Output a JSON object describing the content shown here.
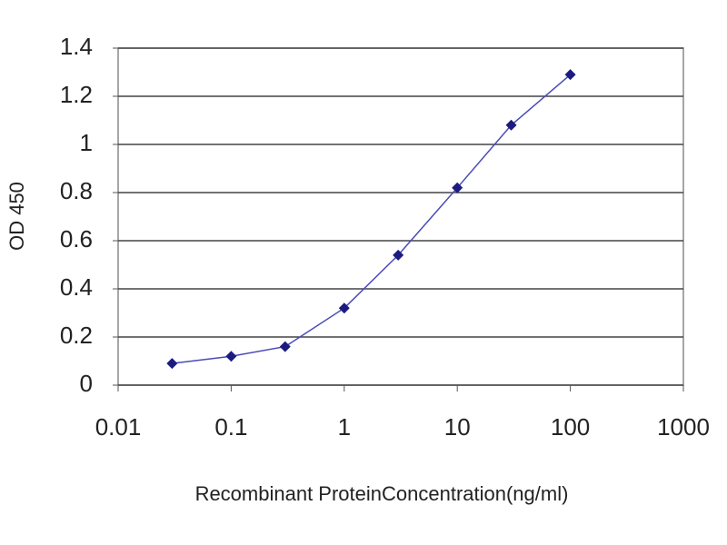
{
  "chart_data": {
    "type": "line",
    "x_label": "Recombinant ProteinConcentration(ng/ml)",
    "y_label": "OD 450",
    "x": [
      0.03,
      0.1,
      0.3,
      1,
      3,
      10,
      30,
      100
    ],
    "values": [
      0.09,
      0.12,
      0.16,
      0.32,
      0.54,
      0.82,
      1.08,
      1.29
    ],
    "color": "#1c1c80",
    "line_color": "#4a4ab8",
    "x_log": true,
    "xlim": [
      0.01,
      1000
    ],
    "xticks": [
      0.01,
      0.1,
      1,
      10,
      100,
      1000
    ],
    "ylim": [
      0,
      1.4
    ],
    "yticks": [
      0,
      0.2,
      0.4,
      0.6,
      0.8,
      1,
      1.2,
      1.4
    ],
    "grid": true
  }
}
